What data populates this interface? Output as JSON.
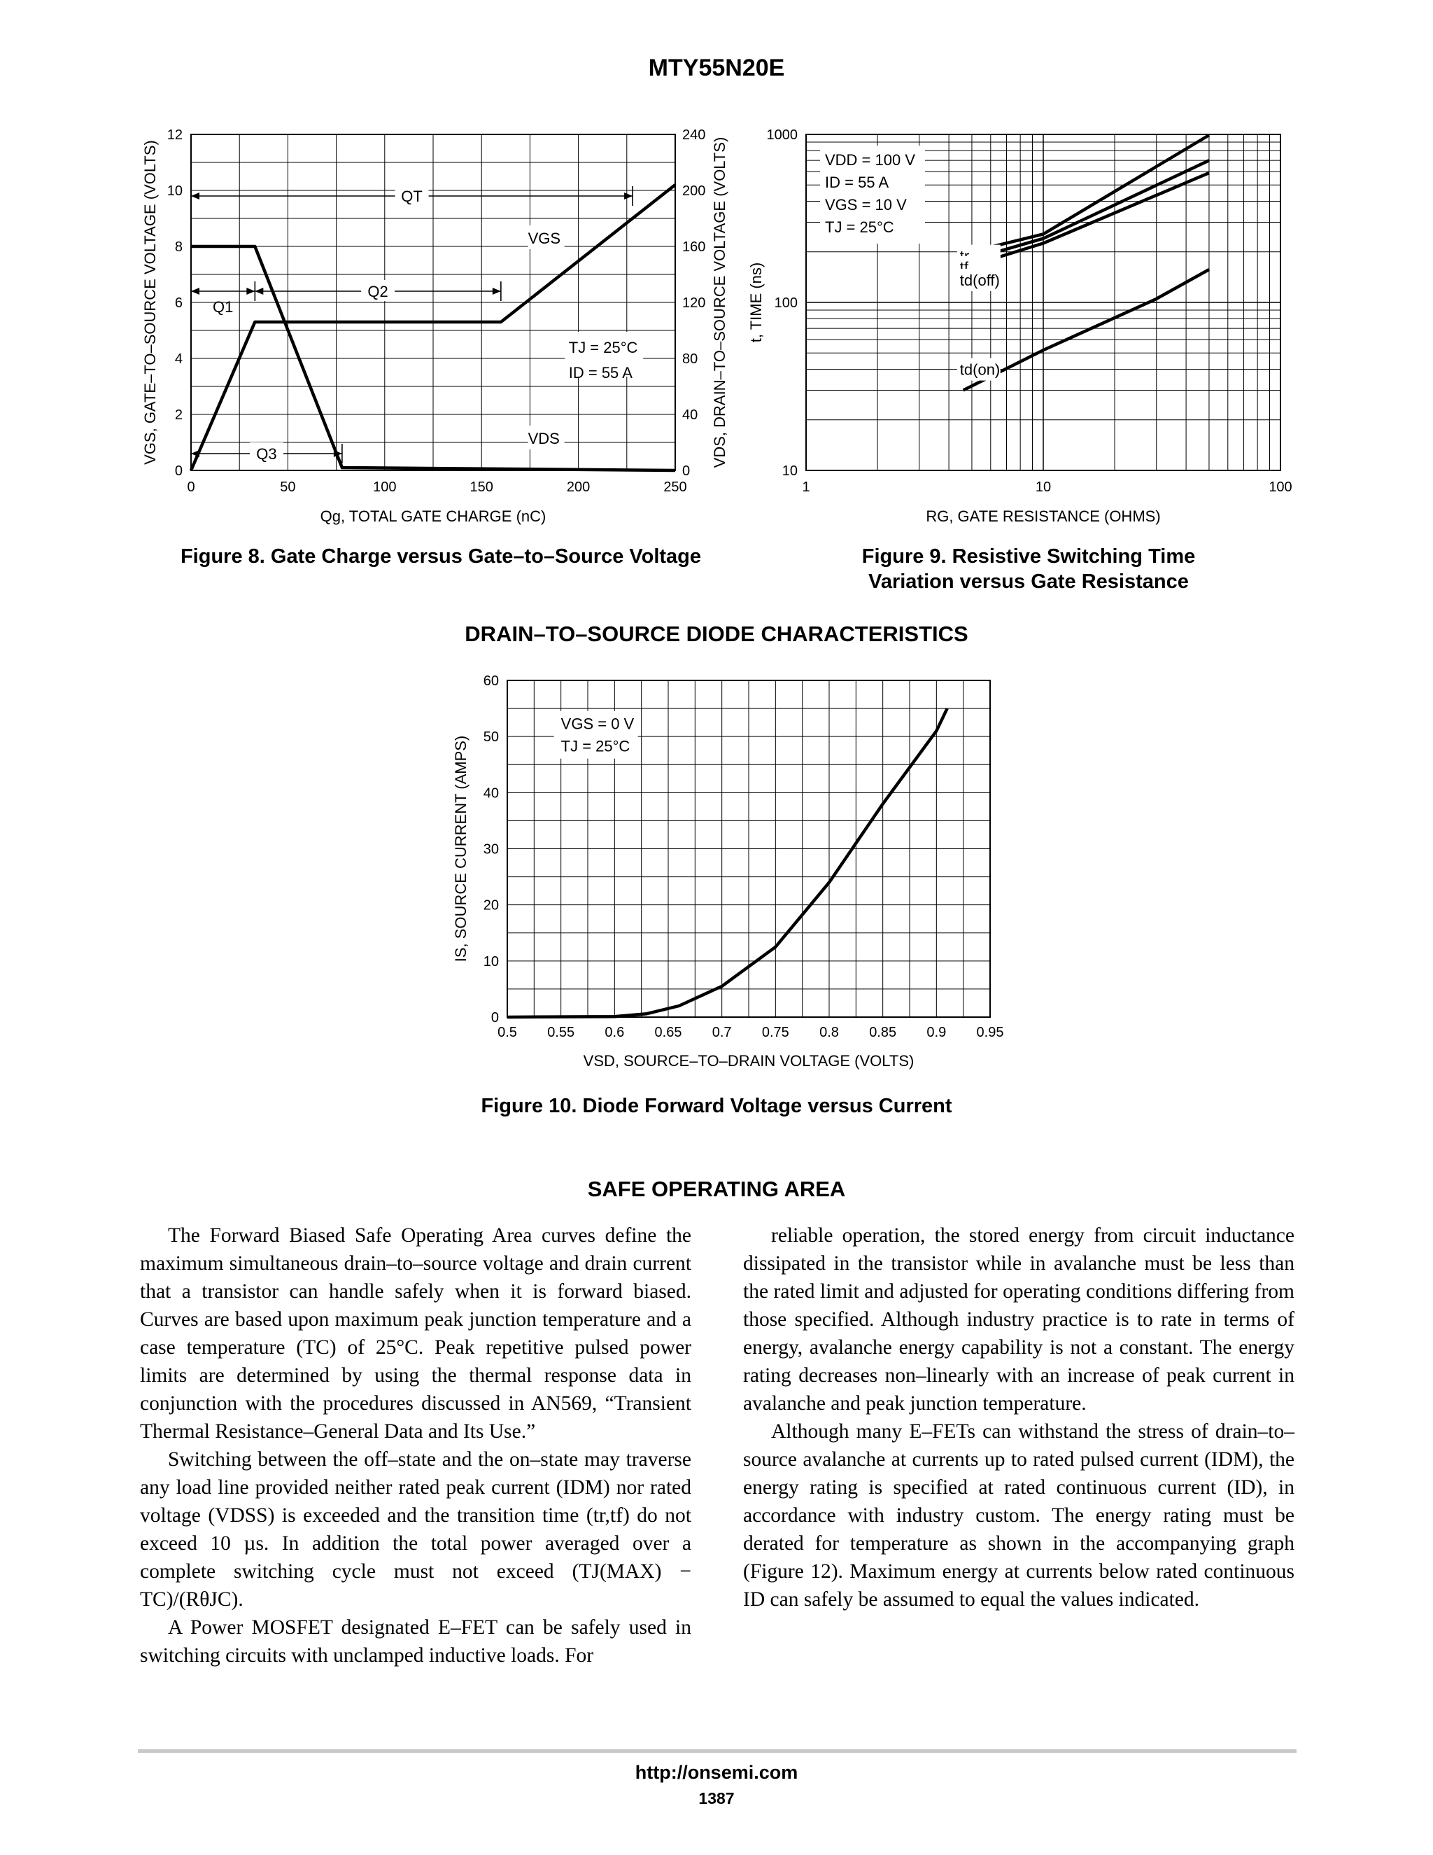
{
  "header": {
    "title": "MTY55N20E"
  },
  "section_title": "DRAIN–TO–SOURCE DIODE CHARACTERISTICS",
  "safe_area": {
    "heading": "SAFE OPERATING AREA",
    "left_paragraphs": [
      "The Forward Biased Safe Operating Area curves define the maximum simultaneous drain–to–source voltage and drain current that a transistor can handle safely when it is forward biased. Curves are based upon maximum peak junction temperature and a case temperature (TC) of 25°C. Peak repetitive pulsed power limits are determined by using the thermal response data in conjunction with the procedures discussed in AN569, “Transient Thermal Resistance–General Data and Its Use.”",
      "Switching between the off–state and the on–state may traverse any load line provided neither rated peak current (IDM) nor rated voltage (VDSS) is exceeded and the transition time (tr,tf) do not exceed 10 µs. In addition the total power averaged over a complete switching cycle must not exceed (TJ(MAX) − TC)/(RθJC).",
      "A Power MOSFET designated E–FET can be safely used in switching circuits with unclamped inductive loads. For"
    ],
    "right_paragraphs": [
      "reliable operation, the stored energy from circuit inductance dissipated in the transistor while in avalanche must be less than the rated limit and adjusted for operating conditions differing from those specified. Although industry practice is to rate in terms of energy, avalanche energy capability is not a constant. The energy rating decreases non–linearly with an increase of peak current in avalanche and peak junction temperature.",
      "Although many E–FETs can withstand the stress of drain–to–source avalanche at currents up to rated pulsed current (IDM), the energy rating is specified at rated continuous current (ID), in accordance with industry custom. The energy rating must be derated for temperature as shown in the accompanying graph (Figure 12). Maximum energy at currents below rated continuous ID can safely be assumed to equal the values indicated."
    ]
  },
  "footer": {
    "url": "http://onsemi.com",
    "page": "1387"
  },
  "chart_data": [
    {
      "type": "line",
      "caption": "Figure 8. Gate Charge versus Gate–to–Source Voltage",
      "xlabel": "Qg, TOTAL GATE CHARGE (nC)",
      "ylabel": "VGS, GATE–TO–SOURCE VOLTAGE (VOLTS)",
      "y2label": "VDS, DRAIN–TO–SOURCE VOLTAGE (VOLTS)",
      "xlim": [
        0,
        250
      ],
      "ylim": [
        0,
        12
      ],
      "y2lim": [
        0,
        240
      ],
      "xticks": [
        "0",
        "50",
        "100",
        "150",
        "200",
        "250"
      ],
      "yticks": [
        "0",
        "2",
        "4",
        "6",
        "8",
        "10",
        "12"
      ],
      "y2ticks": [
        "0",
        "40",
        "80",
        "120",
        "160",
        "200",
        "240"
      ],
      "grid": true,
      "series": [
        {
          "name": "VGS",
          "axis": "left",
          "x": [
            0,
            33,
            160,
            250
          ],
          "y": [
            0,
            5.3,
            5.3,
            10.2
          ]
        },
        {
          "name": "VDS",
          "axis": "right",
          "x": [
            0,
            33,
            78,
            250
          ],
          "y": [
            160,
            160,
            2,
            0
          ]
        }
      ],
      "annotations": [
        {
          "text": "QT",
          "from": 0,
          "to": 228,
          "y": 9.8
        },
        {
          "text": "Q2",
          "from": 33,
          "to": 160,
          "y": 6.4
        },
        {
          "text": "Q1",
          "from": 0,
          "to": 33,
          "y": 6.4
        },
        {
          "text": "Q3",
          "from": 0,
          "to": 78,
          "y": 0.6
        },
        {
          "text": "TJ = 25°C",
          "x": 195,
          "y": 4.2
        },
        {
          "text": "ID = 55 A",
          "x": 195,
          "y": 3.3
        }
      ]
    },
    {
      "type": "line",
      "caption": "Figure 9. Resistive Switching Time Variation versus Gate Resistance",
      "xlabel": "RG, GATE RESISTANCE (OHMS)",
      "ylabel": "t, TIME (ns)",
      "xscale": "log",
      "yscale": "log",
      "xlim": [
        1,
        100
      ],
      "ylim": [
        10,
        1000
      ],
      "xticks": [
        "1",
        "10",
        "100"
      ],
      "yticks": [
        "10",
        "100",
        "1000"
      ],
      "grid": true,
      "conditions": [
        "VDD = 100 V",
        "ID = 55 A",
        "VGS = 10 V",
        "TJ = 25°C"
      ],
      "series": [
        {
          "name": "tr",
          "x": [
            4.6,
            10,
            50
          ],
          "y": [
            195,
            255,
            990
          ]
        },
        {
          "name": "tf",
          "x": [
            4.6,
            10,
            50
          ],
          "y": [
            175,
            240,
            700
          ]
        },
        {
          "name": "td(off)",
          "x": [
            4.6,
            10,
            50
          ],
          "y": [
            160,
            225,
            590
          ]
        },
        {
          "name": "td(on)",
          "x": [
            4.6,
            10,
            30,
            50
          ],
          "y": [
            30,
            52,
            105,
            157
          ]
        }
      ]
    },
    {
      "type": "line",
      "caption": "Figure 10. Diode Forward Voltage versus Current",
      "xlabel": "VSD, SOURCE–TO–DRAIN VOLTAGE (VOLTS)",
      "ylabel": "IS, SOURCE CURRENT (AMPS)",
      "xlim": [
        0.5,
        0.95
      ],
      "ylim": [
        0,
        60
      ],
      "xticks": [
        "0.5",
        "0.55",
        "0.6",
        "0.65",
        "0.7",
        "0.75",
        "0.8",
        "0.85",
        "0.9",
        "0.95"
      ],
      "yticks": [
        "0",
        "10",
        "20",
        "30",
        "40",
        "50",
        "60"
      ],
      "grid": true,
      "conditions": [
        "VGS = 0 V",
        "TJ = 25°C"
      ],
      "series": [
        {
          "name": "IS",
          "x": [
            0.5,
            0.6,
            0.63,
            0.66,
            0.7,
            0.75,
            0.8,
            0.85,
            0.9,
            0.91
          ],
          "y": [
            0,
            0.1,
            0.6,
            2,
            5.5,
            12.5,
            24,
            38,
            51,
            55
          ]
        }
      ]
    }
  ]
}
